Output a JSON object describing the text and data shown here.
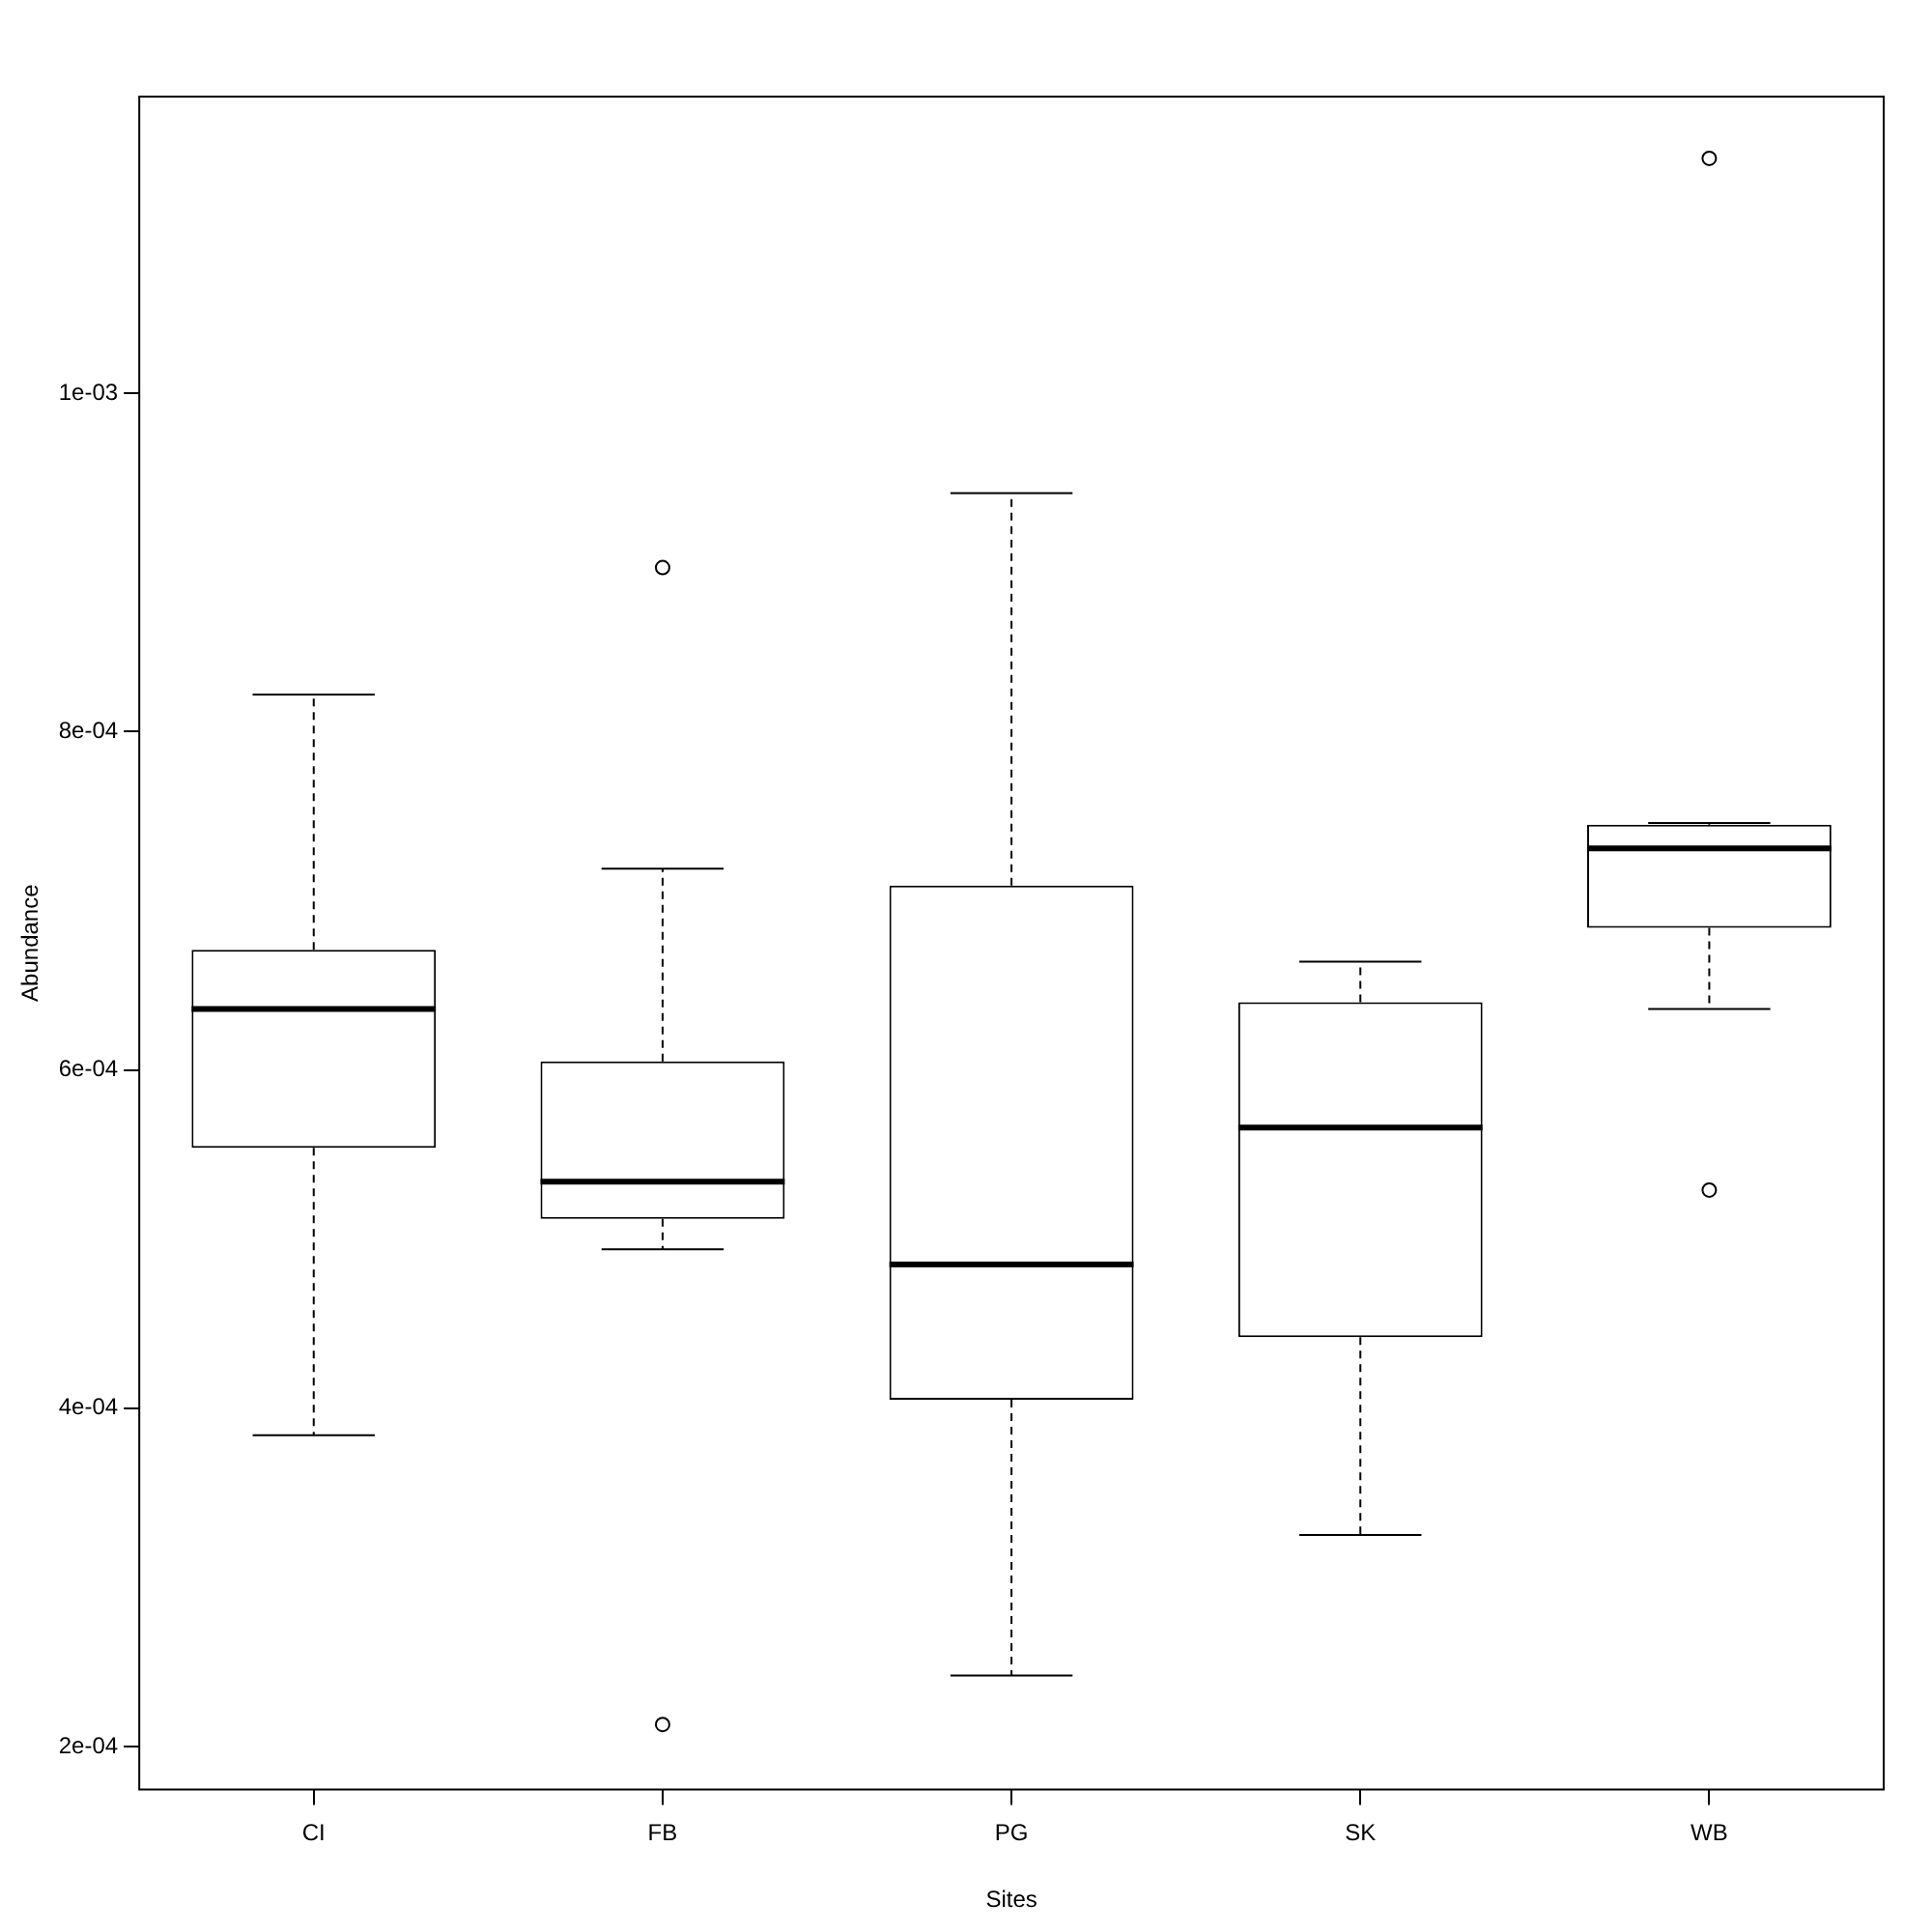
{
  "chart_data": {
    "type": "box",
    "xlabel": "Sites",
    "ylabel": "Abundance",
    "categories": [
      "CI",
      "FB",
      "PG",
      "SK",
      "WB"
    ],
    "boxes": [
      {
        "low": 0.000384,
        "q1": 0.000554,
        "median": 0.000636,
        "q3": 0.000671,
        "high": 0.000822
      },
      {
        "low": 0.000494,
        "q1": 0.000512,
        "median": 0.000534,
        "q3": 0.000605,
        "high": 0.000719,
        "outliers": [
          0.000897,
          0.000213
        ]
      },
      {
        "low": 0.000242,
        "q1": 0.000405,
        "median": 0.000485,
        "q3": 0.000709,
        "high": 0.000941
      },
      {
        "low": 0.000325,
        "q1": 0.000442,
        "median": 0.000566,
        "q3": 0.00064,
        "high": 0.000664
      },
      {
        "low": 0.000636,
        "q1": 0.000684,
        "median": 0.000731,
        "q3": 0.000745,
        "high": 0.000746,
        "outliers": [
          0.001139,
          0.000529
        ]
      }
    ],
    "ylim": [
      0.0001746,
      0.0011755
    ],
    "yticks": [
      {
        "value": 0.0002,
        "label": "2e-04"
      },
      {
        "value": 0.0004,
        "label": "4e-04"
      },
      {
        "value": 0.0006,
        "label": "6e-04"
      },
      {
        "value": 0.0008,
        "label": "8e-04"
      },
      {
        "value": 0.001,
        "label": "1e-03"
      }
    ],
    "grid": false,
    "legend": false,
    "marker": "circle"
  }
}
